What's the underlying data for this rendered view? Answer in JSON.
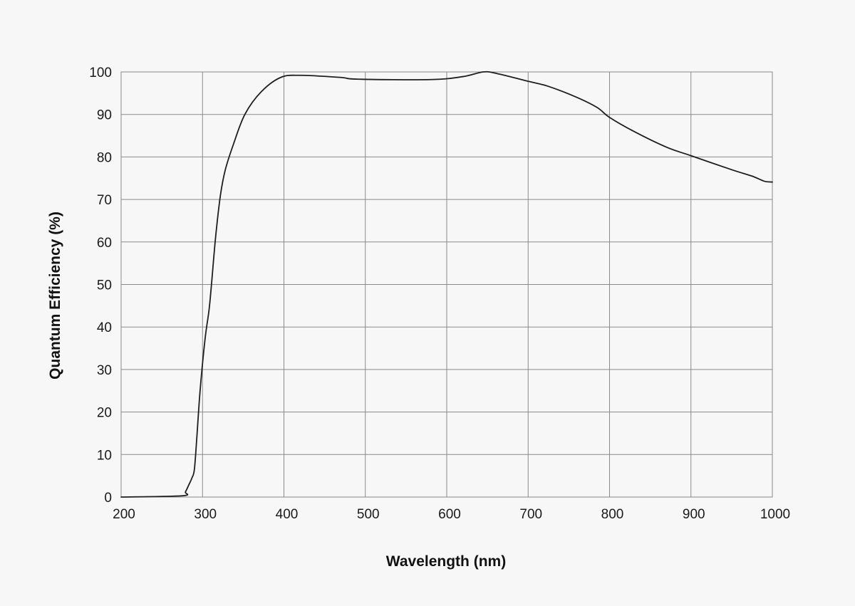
{
  "chart_data": {
    "type": "line",
    "title": "",
    "xlabel": "Wavelength (nm)",
    "ylabel": "Quantum Efficiency (%)",
    "xlim": [
      200,
      1000
    ],
    "ylim": [
      0,
      100
    ],
    "x_ticks": [
      200,
      300,
      400,
      500,
      600,
      700,
      800,
      900,
      1000
    ],
    "y_ticks": [
      0,
      10,
      20,
      30,
      40,
      50,
      60,
      70,
      80,
      90,
      100
    ],
    "grid": true,
    "legend": "none",
    "line_color": "#1e1e1e",
    "series": [
      {
        "x": [
          200,
          275,
          279,
          283,
          287,
          290,
          293,
          297,
          303,
          308,
          311,
          316,
          322,
          328,
          338,
          352,
          372,
          396,
          420,
          470,
          490,
          580,
          620,
          645,
          662,
          700,
          725,
          760,
          785,
          800,
          830,
          870,
          900,
          950,
          975,
          990,
          1000
        ],
        "values": [
          0,
          0.3,
          1.2,
          2.8,
          4.5,
          6.5,
          14,
          25,
          37,
          44,
          50,
          61,
          71,
          77,
          83,
          90,
          95.3,
          98.7,
          99.2,
          98.7,
          98.3,
          98.2,
          98.9,
          100,
          99.6,
          97.8,
          96.6,
          94,
          91.6,
          89.3,
          86,
          82.3,
          80.3,
          77,
          75.5,
          74.3,
          74.1
        ]
      }
    ]
  }
}
